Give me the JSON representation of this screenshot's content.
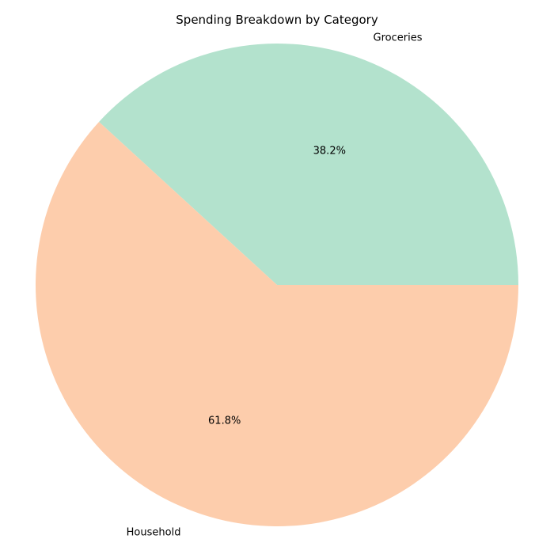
{
  "chart_data": {
    "type": "pie",
    "title": "Spending Breakdown by Category",
    "slices": [
      {
        "label": "Groceries",
        "value": 38.2,
        "pct_label": "38.2%",
        "color": "#b3e2cd"
      },
      {
        "label": "Household",
        "value": 61.8,
        "pct_label": "61.8%",
        "color": "#fdcdac"
      }
    ],
    "start_angle_deg": 0,
    "direction": "counterclockwise"
  }
}
